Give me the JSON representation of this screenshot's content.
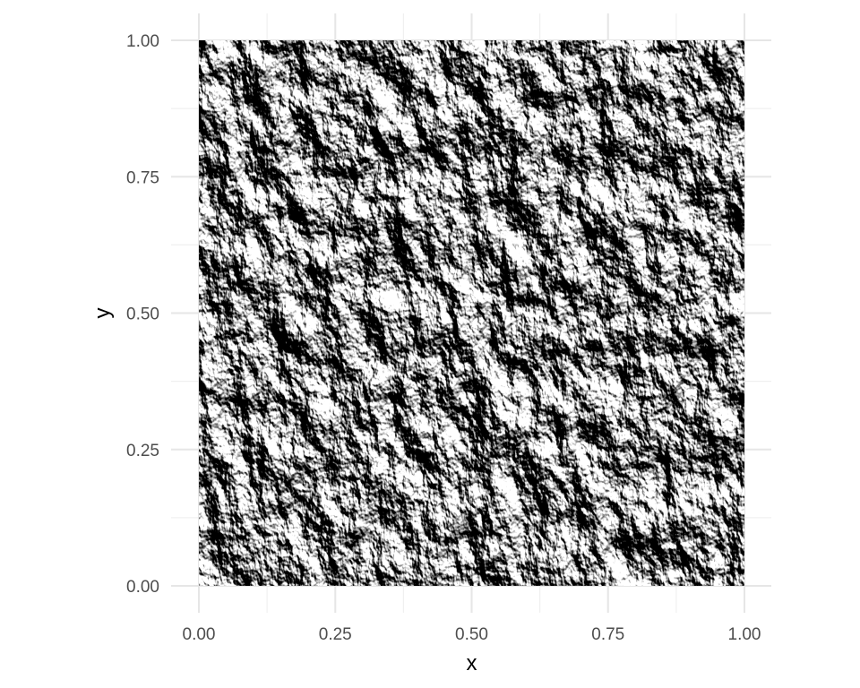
{
  "chart_data": {
    "type": "heatmap",
    "title": "",
    "xlabel": "x",
    "ylabel": "y",
    "xlim": [
      0,
      1
    ],
    "ylim": [
      0,
      1
    ],
    "x_ticks": [
      "0.00",
      "0.25",
      "0.50",
      "0.75",
      "1.00"
    ],
    "y_ticks": [
      "0.00",
      "0.25",
      "0.50",
      "0.75",
      "1.00"
    ],
    "x_tick_values": [
      0,
      0.25,
      0.5,
      0.75,
      1
    ],
    "y_tick_values": [
      0,
      0.25,
      0.5,
      0.75,
      1
    ],
    "colormap": "grayscale",
    "raster": "grayscale hillshade-like terrain relief image filling the unit square",
    "grid": true,
    "legend": "none"
  }
}
